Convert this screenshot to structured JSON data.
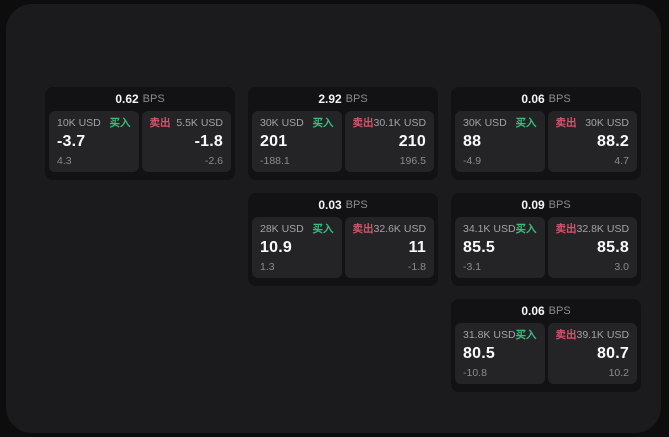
{
  "labels": {
    "buy": "买入",
    "sell": "卖出",
    "bps_unit": "BPS"
  },
  "colors": {
    "page_bg": "#0d0d0e",
    "panel_bg": "#1b1b1d",
    "card_bg": "#121214",
    "tile_bg": "#242427",
    "buy_green": "#3dbd7d",
    "sell_red": "#d2556b"
  },
  "cards": [
    {
      "bps": "0.62",
      "buy": {
        "amount": "10K USD",
        "price": "-3.7",
        "sub": "4.3"
      },
      "sell": {
        "amount": "5.5K USD",
        "price": "-1.8",
        "sub": "-2.6"
      }
    },
    {
      "bps": "2.92",
      "buy": {
        "amount": "30K USD",
        "price": "201",
        "sub": "-188.1"
      },
      "sell": {
        "amount": "30.1K USD",
        "price": "210",
        "sub": "196.5"
      }
    },
    {
      "bps": "0.06",
      "buy": {
        "amount": "30K USD",
        "price": "88",
        "sub": "-4.9"
      },
      "sell": {
        "amount": "30K USD",
        "price": "88.2",
        "sub": "4.7"
      }
    },
    {
      "bps": "0.03",
      "buy": {
        "amount": "28K USD",
        "price": "10.9",
        "sub": "1.3"
      },
      "sell": {
        "amount": "32.6K USD",
        "price": "11",
        "sub": "-1.8"
      }
    },
    {
      "bps": "0.09",
      "buy": {
        "amount": "34.1K USD",
        "price": "85.5",
        "sub": "-3.1"
      },
      "sell": {
        "amount": "32.8K USD",
        "price": "85.8",
        "sub": "3.0"
      }
    },
    {
      "bps": "0.06",
      "buy": {
        "amount": "31.8K USD",
        "price": "80.5",
        "sub": "-10.8"
      },
      "sell": {
        "amount": "39.1K USD",
        "price": "80.7",
        "sub": "10.2"
      }
    }
  ]
}
